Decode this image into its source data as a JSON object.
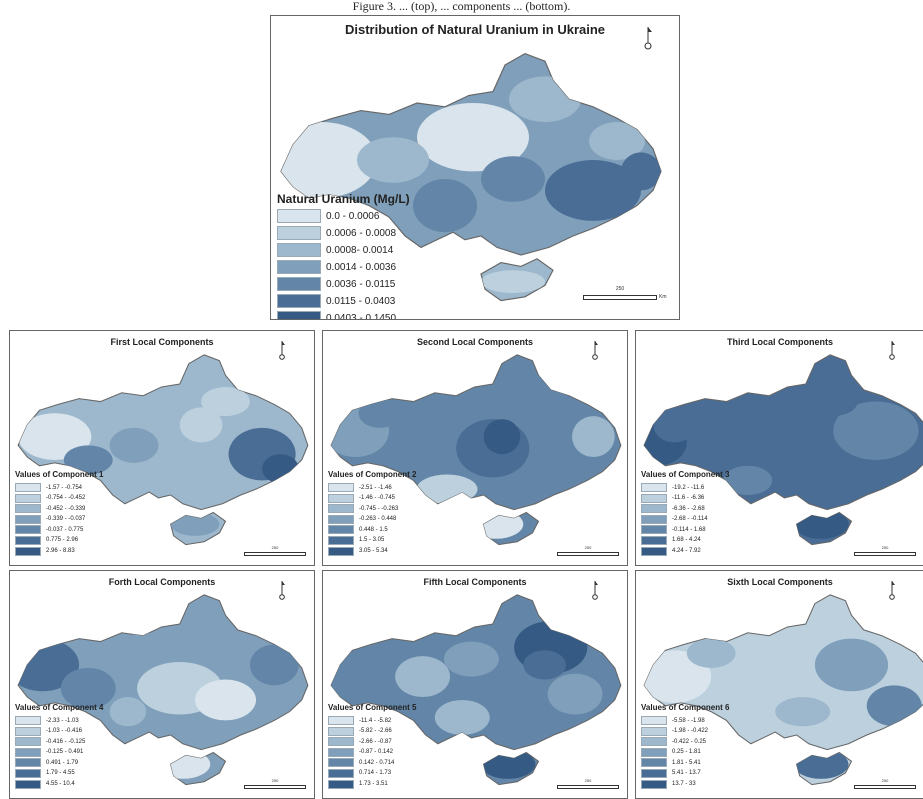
{
  "caption": "Figure 3. ... (top), ... components ... (bottom).",
  "colors": [
    "#d9e4ec",
    "#bcd0de",
    "#9db8cc",
    "#7f9fba",
    "#6386a8",
    "#4a6d95",
    "#355a84"
  ],
  "main": {
    "title": "Distribution of Natural Uranium in Ukraine",
    "legend_title": "Natural Uranium (Mg/L)",
    "legend_items": [
      "0.0 - 0.0006",
      "0.0006 - 0.0008",
      "0.0008- 0.0014",
      "0.0014 - 0.0036",
      "0.0036 - 0.0115",
      "0.0115 - 0.0403",
      "0.0403 - 0.1450"
    ],
    "scale_label": "250",
    "scale_unit": "Km"
  },
  "components": [
    {
      "title": "First Local Components",
      "legend_title": "Values of Component 1",
      "legend_items": [
        "-1.57 - -0.754",
        "-0.754 - -0.452",
        "-0.452 - -0.339",
        "-0.339 - -0.037",
        "-0.037 - 0.775",
        "0.775 - 2.96",
        "2.96 - 8.83"
      ],
      "scale_label": "250"
    },
    {
      "title": "Second Local Components",
      "legend_title": "Values of Component 2",
      "legend_items": [
        "-2.51 - -1.46",
        "-1.46 - -0.745",
        "-0.745 - -0.263",
        "-0.263 - 0.448",
        "0.448 - 1.5",
        "1.5 - 3.05",
        "3.05 - 5.34"
      ],
      "scale_label": "250"
    },
    {
      "title": "Third Local Components",
      "legend_title": "Values of Component 3",
      "legend_items": [
        "-19.2 - -11.6",
        "-11.6 - -6.36",
        "-6.36 - -2.68",
        "-2.68 - -0.114",
        "-0.114 - 1.68",
        "1.68 - 4.24",
        "4.24 - 7.92"
      ],
      "scale_label": "250"
    },
    {
      "title": "Forth Local Components",
      "legend_title": "Values of Component 4",
      "legend_items": [
        "-2.33 - -1.03",
        "-1.03 - -0.416",
        "-0.416 - -0.125",
        "-0.125 - 0.491",
        "0.491 - 1.79",
        "1.79 - 4.55",
        "4.55 - 10.4"
      ],
      "scale_label": "250"
    },
    {
      "title": "Fifth Local Components",
      "legend_title": "Values of Component 5",
      "legend_items": [
        "-11.4 - -5.82",
        "-5.82 - -2.66",
        "-2.66 - -0.87",
        "-0.87 - 0.142",
        "0.142 - 0.714",
        "0.714 - 1.73",
        "1.73 - 3.51"
      ],
      "scale_label": "250"
    },
    {
      "title": "Sixth Local Components",
      "legend_title": "Values of Component 6",
      "legend_items": [
        "-5.58 - -1.98",
        "-1.98 - -0.422",
        "-0.422 - 0.25",
        "0.25 - 1.81",
        "1.81 - 5.41",
        "5.41 - 13.7",
        "13.7 - 33"
      ],
      "scale_label": "250"
    }
  ]
}
